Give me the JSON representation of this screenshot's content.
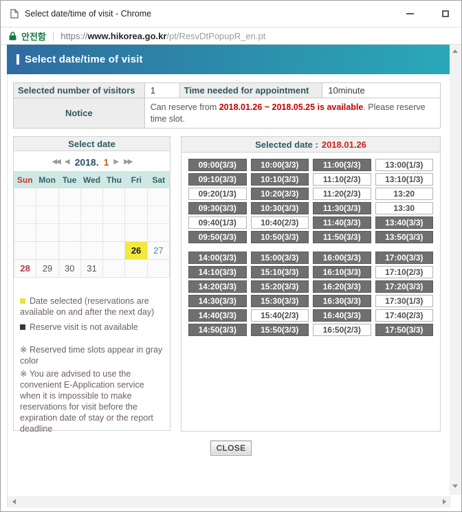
{
  "window": {
    "title": "Select date/time of visit - Chrome"
  },
  "urlbar": {
    "security_label": "안전함",
    "separator": "|",
    "url_scheme": "https://",
    "url_domain": "www.hikorea.go.kr",
    "url_path": "/pt/ResvDtPopupR_en.pt"
  },
  "page": {
    "heading": "Select date/time of visit"
  },
  "info": {
    "visitors_label": "Selected number of visitors",
    "visitors_value": "1",
    "time_label": "Time needed for appointment",
    "time_value": "10minute",
    "notice_label": "Notice",
    "notice_prefix": "Can reserve from ",
    "notice_highlight": "2018.01.26 ~ 2018.05.25 is available",
    "notice_suffix": ". Please reserve time slot."
  },
  "calendar": {
    "title": "Select date",
    "nav": {
      "prev_year": "◀◀",
      "prev_month": "◀",
      "year_label": "2018.",
      "month_label": "1",
      "next_month": "▶",
      "next_year": "▶▶"
    },
    "day_headers": [
      "Sun",
      "Mon",
      "Tue",
      "Wed",
      "Thu",
      "Fri",
      "Sat"
    ],
    "weeks": [
      [
        {
          "day": "",
          "state": "empty"
        },
        {
          "day": "",
          "state": "empty"
        },
        {
          "day": "",
          "state": "empty"
        },
        {
          "day": "",
          "state": "empty"
        },
        {
          "day": "",
          "state": "empty"
        },
        {
          "day": "",
          "state": "empty"
        },
        {
          "day": "",
          "state": "empty"
        }
      ],
      [
        {
          "day": "",
          "state": "empty"
        },
        {
          "day": "",
          "state": "empty"
        },
        {
          "day": "",
          "state": "empty"
        },
        {
          "day": "",
          "state": "empty"
        },
        {
          "day": "",
          "state": "empty"
        },
        {
          "day": "",
          "state": "empty"
        },
        {
          "day": "",
          "state": "empty"
        }
      ],
      [
        {
          "day": "",
          "state": "empty"
        },
        {
          "day": "",
          "state": "empty"
        },
        {
          "day": "",
          "state": "empty"
        },
        {
          "day": "",
          "state": "empty"
        },
        {
          "day": "",
          "state": "empty"
        },
        {
          "day": "",
          "state": "empty"
        },
        {
          "day": "",
          "state": "empty"
        }
      ],
      [
        {
          "day": "",
          "state": "empty"
        },
        {
          "day": "",
          "state": "empty"
        },
        {
          "day": "",
          "state": "empty"
        },
        {
          "day": "",
          "state": "empty"
        },
        {
          "day": "",
          "state": "empty"
        },
        {
          "day": "26",
          "state": "selected"
        },
        {
          "day": "27",
          "state": "sat"
        }
      ],
      [
        {
          "day": "28",
          "state": "sun"
        },
        {
          "day": "29",
          "state": "normal"
        },
        {
          "day": "30",
          "state": "normal"
        },
        {
          "day": "31",
          "state": "normal"
        },
        {
          "day": "",
          "state": "empty"
        },
        {
          "day": "",
          "state": "empty"
        },
        {
          "day": "",
          "state": "empty"
        }
      ]
    ]
  },
  "legend": {
    "items": [
      {
        "swatch_color": "#e8e73b",
        "text": "Date selected (reservations are available on and after the next day)"
      },
      {
        "swatch_color": "#3a3a3a",
        "text": "Reserve visit is not available"
      }
    ],
    "notes": [
      "※ Reserved time slots appear in gray color",
      "※ You are advised to use the convenient E-Application service when it is impossible to make reservations for visit before the expiration date of stay or the report deadline"
    ]
  },
  "schedule": {
    "title_label": "Selected date :",
    "selected_date": "2018.01.26",
    "blocks": [
      [
        [
          {
            "t": "09:00(3/3)",
            "s": "full"
          },
          {
            "t": "10:00(3/3)",
            "s": "full"
          },
          {
            "t": "11:00(3/3)",
            "s": "full"
          },
          {
            "t": "13:00(1/3)",
            "s": "open"
          }
        ],
        [
          {
            "t": "09:10(3/3)",
            "s": "full"
          },
          {
            "t": "10:10(3/3)",
            "s": "full"
          },
          {
            "t": "11:10(2/3)",
            "s": "open"
          },
          {
            "t": "13:10(1/3)",
            "s": "open"
          }
        ],
        [
          {
            "t": "09:20(1/3)",
            "s": "open"
          },
          {
            "t": "10:20(3/3)",
            "s": "full"
          },
          {
            "t": "11:20(2/3)",
            "s": "open"
          },
          {
            "t": "13:20",
            "s": "open"
          }
        ],
        [
          {
            "t": "09:30(3/3)",
            "s": "full"
          },
          {
            "t": "10:30(3/3)",
            "s": "full"
          },
          {
            "t": "11:30(3/3)",
            "s": "full"
          },
          {
            "t": "13:30",
            "s": "open"
          }
        ],
        [
          {
            "t": "09:40(1/3)",
            "s": "open"
          },
          {
            "t": "10:40(2/3)",
            "s": "open"
          },
          {
            "t": "11:40(3/3)",
            "s": "full"
          },
          {
            "t": "13:40(3/3)",
            "s": "full"
          }
        ],
        [
          {
            "t": "09:50(3/3)",
            "s": "full"
          },
          {
            "t": "10:50(3/3)",
            "s": "full"
          },
          {
            "t": "11:50(3/3)",
            "s": "full"
          },
          {
            "t": "13:50(3/3)",
            "s": "full"
          }
        ]
      ],
      [
        [
          {
            "t": "14:00(3/3)",
            "s": "full"
          },
          {
            "t": "15:00(3/3)",
            "s": "full"
          },
          {
            "t": "16:00(3/3)",
            "s": "full"
          },
          {
            "t": "17:00(3/3)",
            "s": "full"
          }
        ],
        [
          {
            "t": "14:10(3/3)",
            "s": "full"
          },
          {
            "t": "15:10(3/3)",
            "s": "full"
          },
          {
            "t": "16:10(3/3)",
            "s": "full"
          },
          {
            "t": "17:10(2/3)",
            "s": "open"
          }
        ],
        [
          {
            "t": "14:20(3/3)",
            "s": "full"
          },
          {
            "t": "15:20(3/3)",
            "s": "full"
          },
          {
            "t": "16:20(3/3)",
            "s": "full"
          },
          {
            "t": "17:20(3/3)",
            "s": "full"
          }
        ],
        [
          {
            "t": "14:30(3/3)",
            "s": "full"
          },
          {
            "t": "15:30(3/3)",
            "s": "full"
          },
          {
            "t": "16:30(3/3)",
            "s": "full"
          },
          {
            "t": "17:30(1/3)",
            "s": "open"
          }
        ],
        [
          {
            "t": "14:40(3/3)",
            "s": "full"
          },
          {
            "t": "15:40(2/3)",
            "s": "open"
          },
          {
            "t": "16:40(3/3)",
            "s": "full"
          },
          {
            "t": "17:40(2/3)",
            "s": "open"
          }
        ],
        [
          {
            "t": "14:50(3/3)",
            "s": "full"
          },
          {
            "t": "15:50(3/3)",
            "s": "full"
          },
          {
            "t": "16:50(2/3)",
            "s": "open"
          },
          {
            "t": "17:50(3/3)",
            "s": "full"
          }
        ]
      ]
    ]
  },
  "close_button": "CLOSE",
  "icons": {
    "titlebar": "page-icon",
    "security": "lock-icon",
    "window_controls": [
      "minimize-icon",
      "maximize-icon"
    ],
    "calendar_nav": [
      "double-left-triangle",
      "left-triangle",
      "right-triangle",
      "double-right-triangle"
    ],
    "scrollbar": [
      "triangle-up",
      "triangle-down",
      "triangle-left",
      "triangle-right"
    ]
  },
  "colors": {
    "header_gradient_left": "#2f6ba0",
    "header_gradient_right": "#2aa9b8",
    "notice_red": "#c00000",
    "selected_date_red": "#cc2222",
    "selected_day_yellow": "#f2e93a",
    "reserved_slot_gray": "#6f6f6f",
    "day_header_teal": "#cfe8e3",
    "secure_green": "#0f7b3f",
    "label_text": "#30565e"
  }
}
